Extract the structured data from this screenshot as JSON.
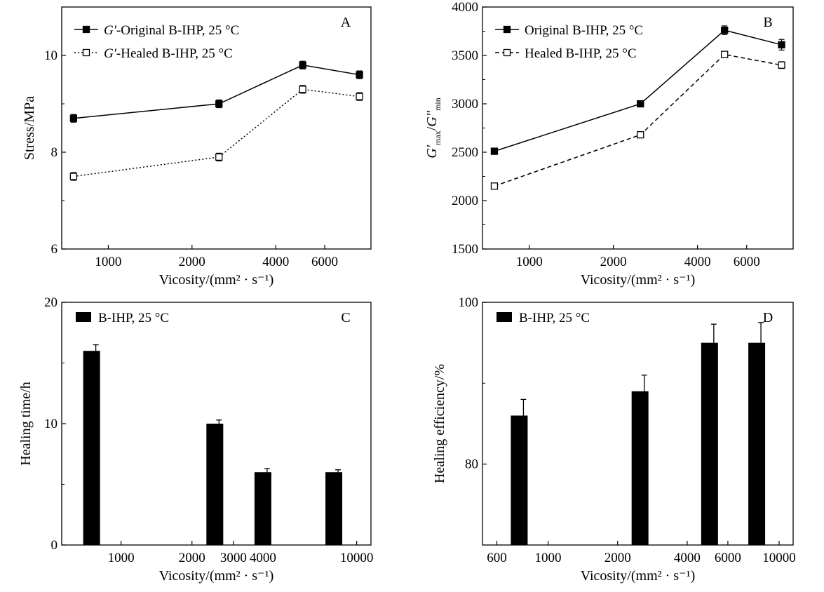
{
  "chart_data": [
    {
      "panel": "A",
      "type": "line",
      "x": [
        750,
        2500,
        5000,
        8000
      ],
      "xticks": [
        1000,
        2000,
        4000,
        6000
      ],
      "xticklabels": [
        "1000",
        "2000",
        "4000",
        "6000"
      ],
      "xlabel": "Vicosity/(mm² · s⁻¹)",
      "ylabel": "Stress/MPa",
      "ylim": [
        6,
        11
      ],
      "yticks": [
        6,
        8,
        10
      ],
      "yticklabels": [
        "6",
        "8",
        "10"
      ],
      "series": [
        {
          "name": "G′-Original B-IHP, 25 °C",
          "marker": "filled-square",
          "line": "solid",
          "values": [
            8.7,
            9.0,
            9.8,
            9.6
          ],
          "errors": [
            0.08,
            0.08,
            0.08,
            0.08
          ]
        },
        {
          "name": "G′-Healed B-IHP, 25 °C",
          "marker": "open-square",
          "line": "dotted",
          "values": [
            7.5,
            7.9,
            9.3,
            9.15
          ],
          "errors": [
            0.08,
            0.08,
            0.08,
            0.08
          ]
        }
      ],
      "legend": [
        {
          "prefix": "G′",
          "rest": "-Original B-IHP, 25 °C"
        },
        {
          "prefix": "G′",
          "rest": "-Healed B-IHP, 25 °C"
        }
      ],
      "legend_position": "top-left"
    },
    {
      "panel": "B",
      "type": "line",
      "x": [
        750,
        2500,
        5000,
        8000
      ],
      "xticks": [
        1000,
        2000,
        4000,
        6000
      ],
      "xticklabels": [
        "1000",
        "2000",
        "4000",
        "6000"
      ],
      "xlabel": "Vicosity/(mm² · s⁻¹)",
      "ylabel_parts": {
        "g1": "G′",
        "sub1": "max",
        "slash": "/",
        "g2": "G″",
        "sub2": "min"
      },
      "ylim": [
        1500,
        4000
      ],
      "yticks": [
        1500,
        2000,
        2500,
        3000,
        3500,
        4000
      ],
      "yticklabels": [
        "1500",
        "2000",
        "2500",
        "3000",
        "3500",
        "4000"
      ],
      "series": [
        {
          "name": "Original B-IHP, 25 °C",
          "marker": "filled-square",
          "line": "solid",
          "values": [
            2510,
            3000,
            3760,
            3610
          ],
          "errors": [
            20,
            25,
            45,
            55
          ]
        },
        {
          "name": "Healed B-IHP, 25 °C",
          "marker": "open-square",
          "line": "dashed",
          "values": [
            2150,
            2680,
            3510,
            3400
          ],
          "errors": [
            15,
            20,
            30,
            35
          ]
        }
      ],
      "legend_position": "top-left"
    },
    {
      "panel": "C",
      "type": "bar",
      "x": [
        750,
        2500,
        4000,
        8000
      ],
      "values": [
        16,
        10,
        6,
        6
      ],
      "errors": [
        0.5,
        0.3,
        0.3,
        0.2
      ],
      "xticks": [
        1000,
        2000,
        3000,
        4000,
        10000
      ],
      "xticklabels": [
        "1000",
        "2000",
        "3000",
        "4000",
        "10000"
      ],
      "xlabel": "Vicosity/(mm² · s⁻¹)",
      "ylabel": "Healing time/h",
      "ylim": [
        0,
        20
      ],
      "yticks": [
        0,
        10,
        20
      ],
      "yticklabels": [
        "0",
        "10",
        "20"
      ],
      "series": [
        {
          "name": "B-IHP, 25 °C"
        }
      ],
      "legend_position": "top-left"
    },
    {
      "panel": "D",
      "type": "bar",
      "x": [
        750,
        2500,
        5000,
        8000
      ],
      "values": [
        86,
        89,
        95,
        95
      ],
      "errors": [
        2.0,
        2.0,
        2.3,
        2.5
      ],
      "xticks": [
        600,
        1000,
        2000,
        4000,
        6000,
        10000
      ],
      "xticklabels": [
        "600",
        "1000",
        "2000",
        "4000",
        "6000",
        "10000"
      ],
      "xlabel": "Vicosity/(mm² · s⁻¹)",
      "ylabel": "Healing efficiency/%",
      "ylim": [
        70,
        100
      ],
      "yticks": [
        80,
        100
      ],
      "yticklabels": [
        "80",
        "100"
      ],
      "series": [
        {
          "name": "B-IHP, 25 °C"
        }
      ],
      "legend_position": "top-left"
    }
  ]
}
